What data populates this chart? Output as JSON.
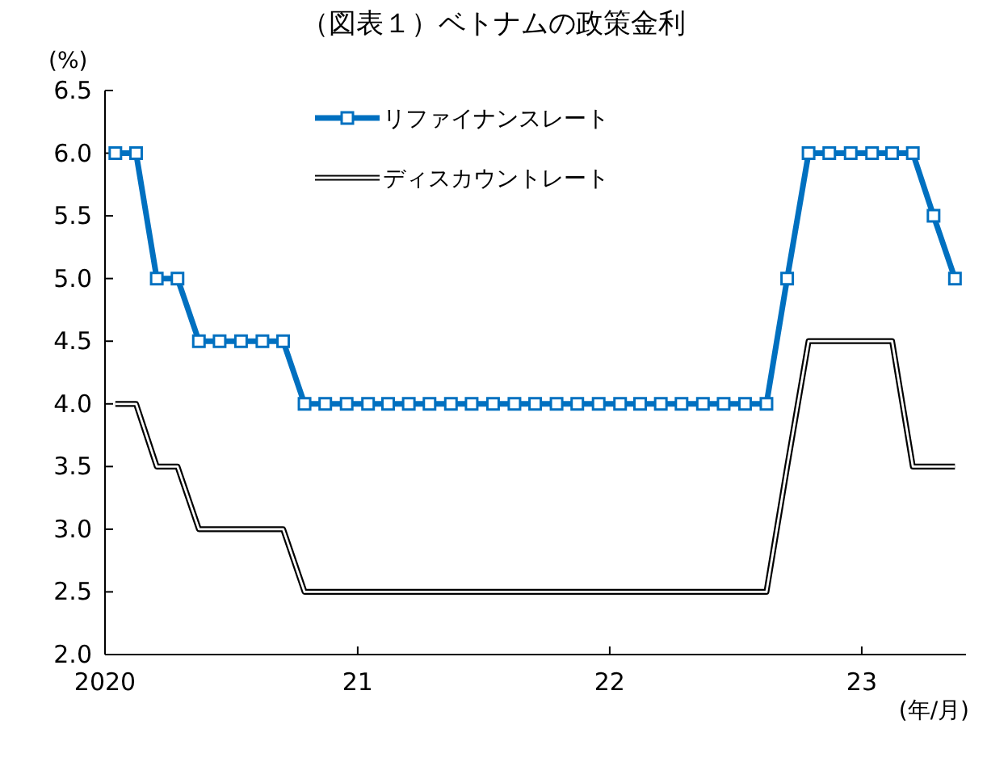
{
  "chart_data": {
    "type": "line",
    "title": "（図表１）ベトナムの政策金利",
    "ylabel": "(%)",
    "xlabel": "(年/月)",
    "x": [
      "2020-01-16",
      "2020-02-15",
      "2020-03-16",
      "2020-04-15",
      "2020-05-16",
      "2020-06-15",
      "2020-07-16",
      "2020-08-16",
      "2020-09-15",
      "2020-10-16",
      "2020-11-15",
      "2020-12-16",
      "2021-01-16",
      "2021-02-14",
      "2021-03-16",
      "2021-04-15",
      "2021-05-16",
      "2021-06-15",
      "2021-07-16",
      "2021-08-16",
      "2021-09-15",
      "2021-10-16",
      "2021-11-15",
      "2021-12-16",
      "2022-01-16",
      "2022-02-14",
      "2022-03-16",
      "2022-04-15",
      "2022-05-16",
      "2022-06-15",
      "2022-07-16",
      "2022-08-16",
      "2022-09-15",
      "2022-10-16",
      "2022-11-15",
      "2022-12-16",
      "2023-01-16",
      "2023-02-14",
      "2023-03-16",
      "2023-04-15",
      "2023-05-16"
    ],
    "series": [
      {
        "name": "リファイナンスレート",
        "color": "#0070c0",
        "marker": "square",
        "line_style": "solid",
        "values": [
          6,
          6,
          5,
          5,
          4.5,
          4.5,
          4.5,
          4.5,
          4.5,
          4,
          4,
          4,
          4,
          4,
          4,
          4,
          4,
          4,
          4,
          4,
          4,
          4,
          4,
          4,
          4,
          4,
          4,
          4,
          4,
          4,
          4,
          4,
          5,
          6,
          6,
          6,
          6,
          6,
          6,
          5.5,
          5
        ]
      },
      {
        "name": "ディスカウントレート",
        "color": "#000000",
        "marker": "none",
        "line_style": "solid",
        "values": [
          4,
          4,
          3.5,
          3.5,
          3,
          3,
          3,
          3,
          3,
          2.5,
          2.5,
          2.5,
          2.5,
          2.5,
          2.5,
          2.5,
          2.5,
          2.5,
          2.5,
          2.5,
          2.5,
          2.5,
          2.5,
          2.5,
          2.5,
          2.5,
          2.5,
          2.5,
          2.5,
          2.5,
          2.5,
          2.5,
          3.5,
          4.5,
          4.5,
          4.5,
          4.5,
          4.5,
          3.5,
          3.5,
          3.5
        ]
      }
    ],
    "xlim": [
      "2020-01-01",
      "2023-06-01"
    ],
    "xticks": [
      {
        "value": "2020-01-01",
        "label": "2020"
      },
      {
        "value": "2021-01-01",
        "label": "21"
      },
      {
        "value": "2022-01-01",
        "label": "22"
      },
      {
        "value": "2023-01-01",
        "label": "23"
      }
    ],
    "ylim": [
      2,
      6.5
    ],
    "yticks": [
      {
        "value": 2,
        "label": "2.0"
      },
      {
        "value": 2.5,
        "label": "2.5"
      },
      {
        "value": 3,
        "label": "3.0"
      },
      {
        "value": 3.5,
        "label": "3.5"
      },
      {
        "value": 4,
        "label": "4.0"
      },
      {
        "value": 4.5,
        "label": "4.5"
      },
      {
        "value": 5,
        "label": "5.0"
      },
      {
        "value": 5.5,
        "label": "5.5"
      },
      {
        "value": 6,
        "label": "6.0"
      },
      {
        "value": 6.5,
        "label": "6.5"
      }
    ],
    "grid": false,
    "legend": "top left"
  }
}
